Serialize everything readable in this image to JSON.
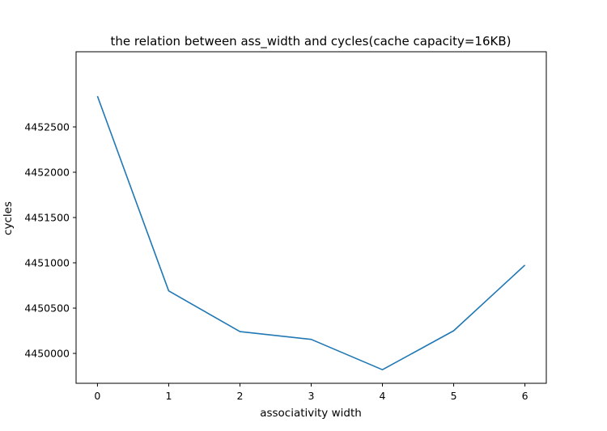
{
  "chart_data": {
    "type": "line",
    "title": "the relation between ass_width and cycles(cache capacity=16KB)",
    "xlabel": "associativity width",
    "ylabel": "cycles",
    "x": [
      0,
      1,
      2,
      3,
      4,
      5,
      6
    ],
    "x_ticks": [
      "0",
      "1",
      "2",
      "3",
      "4",
      "5",
      "6"
    ],
    "series": [
      {
        "values": [
          4452840,
          4450690,
          4450240,
          4450155,
          4449820,
          4450250,
          4450975
        ]
      }
    ],
    "y_ticks": [
      "4450000",
      "4450500",
      "4451000",
      "4451500",
      "4452000",
      "4452500"
    ],
    "y_tick_values": [
      4450000,
      4450500,
      4451000,
      4451500,
      4452000,
      4452500
    ],
    "xlim": [
      -0.3,
      6.3
    ],
    "ylim": [
      4449670,
      4453330
    ],
    "grid": false,
    "line_color": "#1f77b4"
  }
}
